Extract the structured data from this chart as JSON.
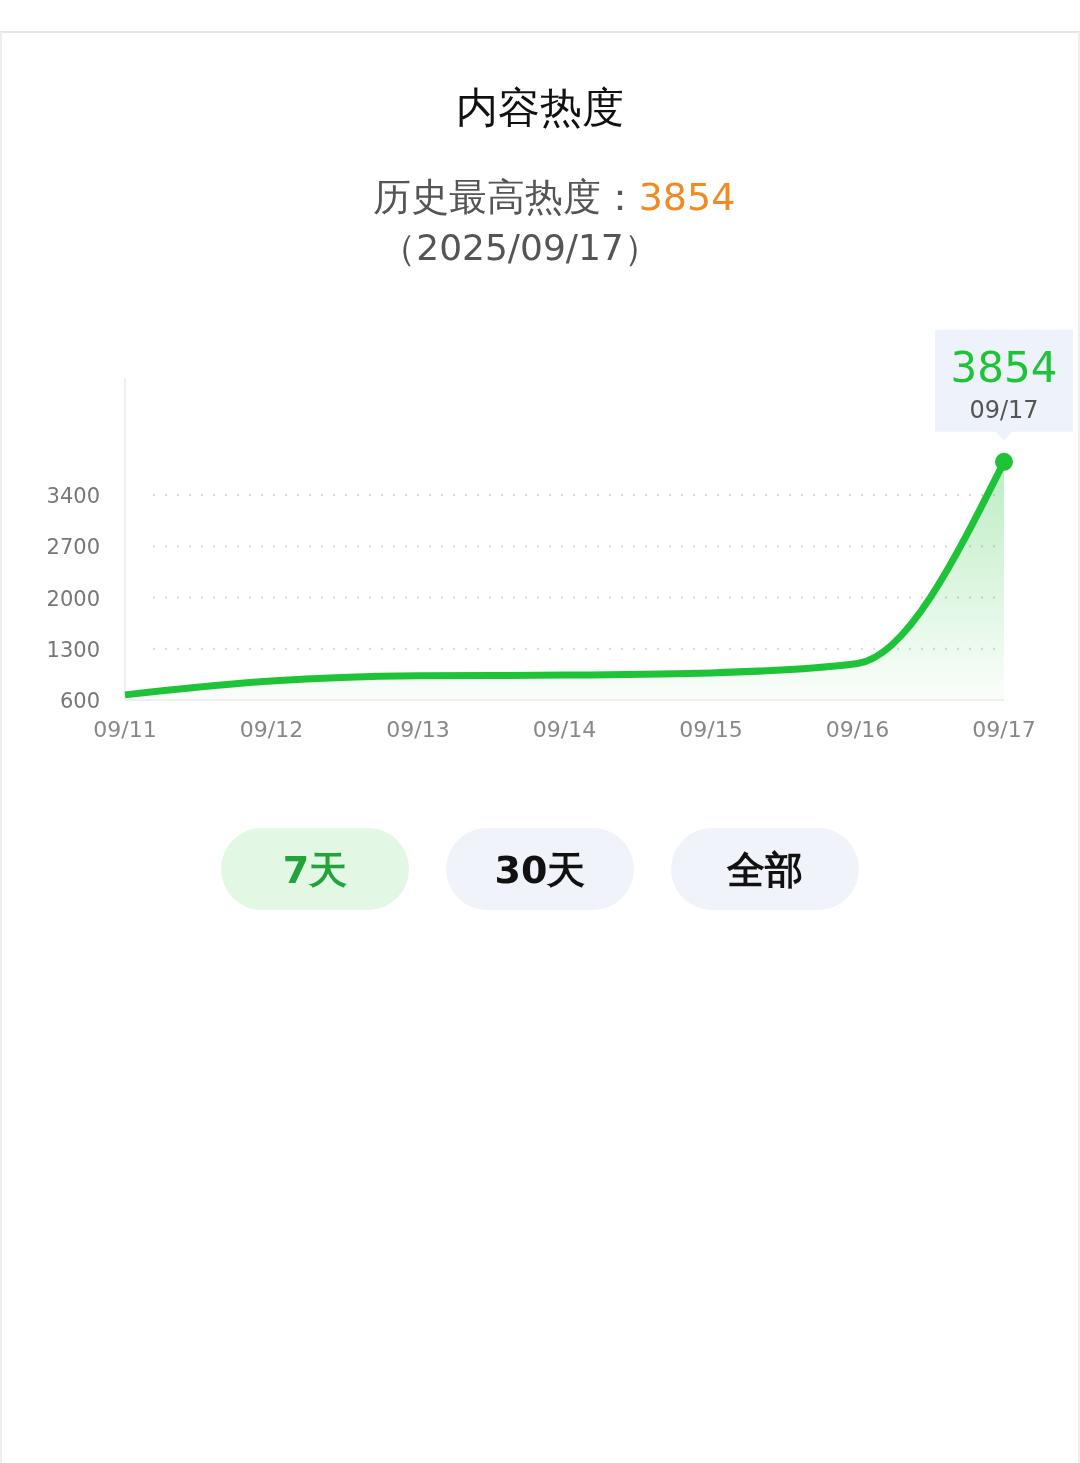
{
  "chart_data": {
    "type": "area",
    "title": "内容热度",
    "subtitle": "历史最高热度：3854",
    "categories": [
      "09/11",
      "09/12",
      "09/13",
      "09/14",
      "09/15",
      "09/16",
      "09/17"
    ],
    "series": [
      {
        "color": "#1ec337",
        "values": [
          670,
          860,
          930,
          940,
          970,
          1100,
          3854
        ],
        "value_labels": [
          null,
          null,
          null,
          null,
          null,
          null,
          "3854"
        ]
      }
    ],
    "ylim": [
      600,
      5000
    ],
    "yticks": [
      600,
      1300,
      2000,
      2700,
      3400
    ],
    "grid": "y",
    "annotations": [
      "（2025/09/17）",
      "7天",
      "30天",
      "全部"
    ]
  }
}
